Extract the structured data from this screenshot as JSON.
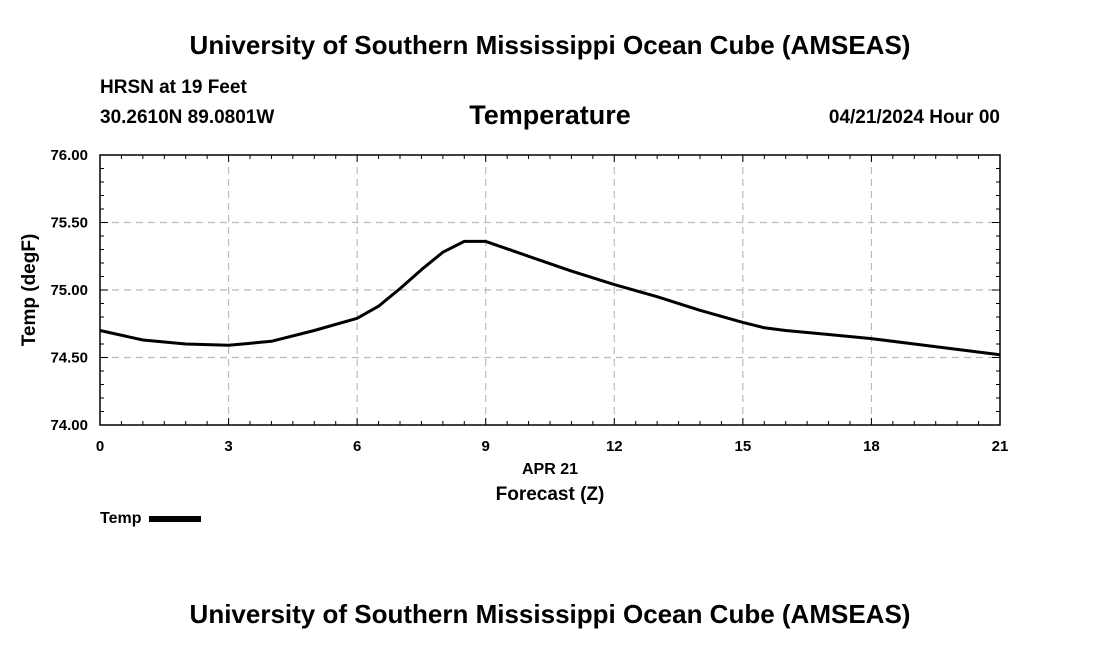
{
  "header": {
    "title": "University of Southern Mississippi Ocean Cube (AMSEAS)",
    "station": "HRSN at 19 Feet",
    "coords": "30.2610N  89.0801W",
    "datetime": "04/21/2024 Hour 00"
  },
  "footer": {
    "title": "University of Southern Mississippi Ocean Cube (AMSEAS)"
  },
  "legend": {
    "label": "Temp"
  },
  "chart_data": {
    "type": "line",
    "title": "Temperature",
    "xlabel": "Forecast (Z)",
    "xsublabel": "APR 21",
    "ylabel": "Temp (degF)",
    "xlim": [
      0,
      21
    ],
    "ylim": [
      74.0,
      76.0
    ],
    "xticks": [
      0,
      3,
      6,
      9,
      12,
      15,
      18,
      21
    ],
    "xtick_labels": [
      "0",
      "3",
      "6",
      "9",
      "12",
      "15",
      "18",
      "21"
    ],
    "yticks": [
      74.0,
      74.5,
      75.0,
      75.5,
      76.0
    ],
    "ytick_labels": [
      "74.00",
      "74.50",
      "75.00",
      "75.50",
      "76.00"
    ],
    "grid": true,
    "legend_position": "bottom-left",
    "colors": {
      "line": "#000000",
      "grid": "#bbbbbb"
    },
    "series": [
      {
        "name": "Temp",
        "x": [
          0,
          1,
          2,
          3,
          4,
          5,
          6,
          6.5,
          7,
          7.5,
          8,
          8.5,
          9,
          10,
          11,
          12,
          13,
          14,
          15,
          15.5,
          16,
          17,
          18,
          19,
          20,
          21
        ],
        "y": [
          74.7,
          74.63,
          74.6,
          74.59,
          74.62,
          74.7,
          74.79,
          74.88,
          75.01,
          75.15,
          75.28,
          75.36,
          75.36,
          75.25,
          75.14,
          75.04,
          74.95,
          74.85,
          74.76,
          74.72,
          74.7,
          74.67,
          74.64,
          74.6,
          74.56,
          74.52
        ]
      }
    ]
  }
}
